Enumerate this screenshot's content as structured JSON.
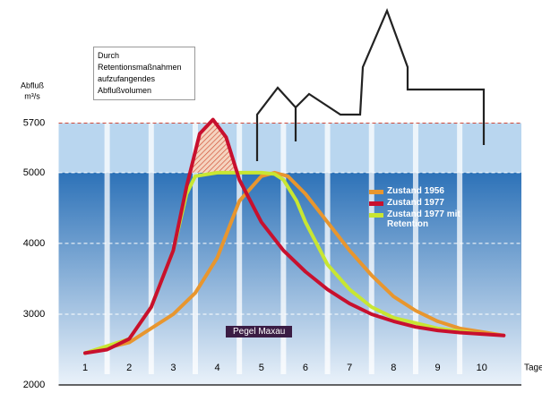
{
  "chart_data": {
    "type": "line",
    "y_label_line1": "Abfluß",
    "y_label_line2": "m³/s",
    "x_label": "Tage",
    "annotation": "Durch Retentionsmaßnahmen aufzufangendes Abflußvolumen",
    "gauge_label": "Pegel Maxau",
    "xlim": [
      0.4,
      10.9
    ],
    "xticks": [
      1,
      2,
      3,
      4,
      5,
      6,
      7,
      8,
      9,
      10
    ],
    "ylim": [
      2000,
      6200
    ],
    "yticks": [
      2000,
      3000,
      4000,
      5000,
      5700
    ],
    "series": [
      {
        "name": "Zustand 1956",
        "color": "#e8962e",
        "x": [
          1,
          2,
          3,
          3.5,
          4,
          4.5,
          5,
          5.3,
          5.6,
          6,
          6.5,
          7,
          7.5,
          8,
          8.5,
          9,
          9.5,
          10,
          10.5
        ],
        "values": [
          2450,
          2600,
          3000,
          3300,
          3800,
          4600,
          4950,
          5000,
          4950,
          4700,
          4300,
          3900,
          3550,
          3250,
          3050,
          2900,
          2800,
          2750,
          2700
        ]
      },
      {
        "name": "Zustand 1977",
        "color": "#c8102e",
        "x": [
          1,
          1.5,
          2,
          2.5,
          3,
          3.3,
          3.6,
          3.9,
          4.2,
          4.5,
          5,
          5.5,
          6,
          6.5,
          7,
          7.5,
          8,
          8.5,
          9,
          9.5,
          10,
          10.5
        ],
        "values": [
          2450,
          2500,
          2650,
          3100,
          3900,
          4800,
          5550,
          5750,
          5500,
          4900,
          4300,
          3900,
          3600,
          3350,
          3150,
          3000,
          2900,
          2820,
          2770,
          2740,
          2720,
          2700
        ]
      },
      {
        "name": "Zustand 1977 mit Retention",
        "color": "#c8e632",
        "x": [
          1,
          2,
          2.5,
          3,
          3.3,
          3.5,
          4,
          5,
          5.3,
          5.5,
          5.8,
          6,
          6.5,
          7,
          7.5,
          8,
          9,
          10
        ],
        "values": [
          2450,
          2650,
          3100,
          3900,
          4700,
          4950,
          5000,
          5000,
          4980,
          4900,
          4600,
          4300,
          3700,
          3350,
          3100,
          2950,
          2800,
          2720
        ]
      }
    ]
  }
}
